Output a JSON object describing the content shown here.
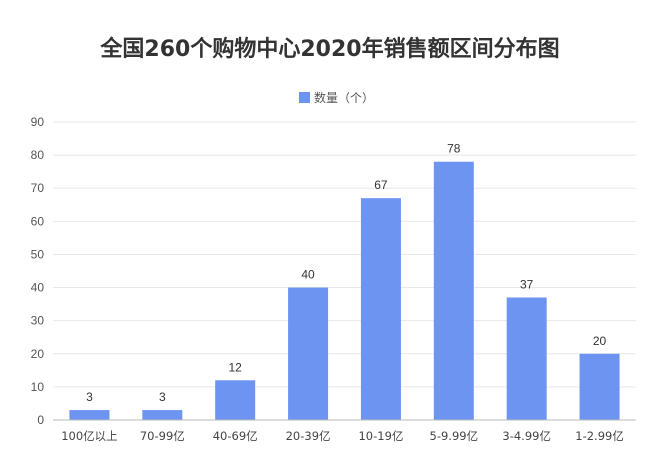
{
  "chart_data": {
    "type": "bar",
    "title": "全国260个购物中心2020年销售额区间分布图",
    "series": [
      {
        "name": "数量（个）",
        "color": "#6d94f0",
        "values": [
          3,
          3,
          12,
          40,
          67,
          78,
          37,
          20
        ]
      }
    ],
    "categories": [
      "100亿以上",
      "70-99亿",
      "40-69亿",
      "20-39亿",
      "10-19亿",
      "5-9.99亿",
      "3-4.99亿",
      "1-2.99亿"
    ],
    "ylim": [
      0,
      90
    ],
    "yticks": [
      0,
      10,
      20,
      30,
      40,
      50,
      60,
      70,
      80,
      90
    ],
    "grid": true,
    "legend_position": "top",
    "data_labels": true
  }
}
